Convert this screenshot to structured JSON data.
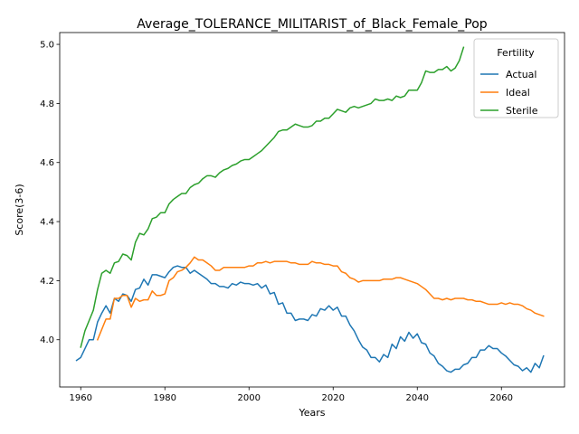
{
  "chart_data": {
    "type": "line",
    "title": "Average_TOLERANCE_MILITARIST_of_Black_Female_Pop",
    "xlabel": "Years",
    "ylabel": "Score(3-6)",
    "xlim": [
      1955,
      2075
    ],
    "ylim": [
      3.84,
      5.04
    ],
    "xticks": [
      1960,
      1980,
      2000,
      2020,
      2040,
      2060
    ],
    "yticks": [
      4.0,
      4.2,
      4.4,
      4.6,
      4.8,
      5.0
    ],
    "grid": false,
    "legend": {
      "title": "Fertility",
      "placement": "top-right"
    },
    "series": [
      {
        "name": "Actual",
        "color": "#1f77b4",
        "points": [
          [
            1959,
            3.93
          ],
          [
            1960,
            3.94
          ],
          [
            1961,
            3.97
          ],
          [
            1962,
            4.0
          ],
          [
            1963,
            4.0
          ],
          [
            1964,
            4.06
          ],
          [
            1965,
            4.09
          ],
          [
            1966,
            4.115
          ],
          [
            1967,
            4.09
          ],
          [
            1968,
            4.14
          ],
          [
            1969,
            4.13
          ],
          [
            1970,
            4.155
          ],
          [
            1971,
            4.15
          ],
          [
            1972,
            4.13
          ],
          [
            1973,
            4.17
          ],
          [
            1974,
            4.175
          ],
          [
            1975,
            4.205
          ],
          [
            1976,
            4.185
          ],
          [
            1977,
            4.22
          ],
          [
            1978,
            4.22
          ],
          [
            1979,
            4.215
          ],
          [
            1980,
            4.21
          ],
          [
            1981,
            4.23
          ],
          [
            1982,
            4.245
          ],
          [
            1983,
            4.25
          ],
          [
            1984,
            4.245
          ],
          [
            1985,
            4.245
          ],
          [
            1986,
            4.225
          ],
          [
            1987,
            4.235
          ],
          [
            1988,
            4.225
          ],
          [
            1989,
            4.215
          ],
          [
            1990,
            4.205
          ],
          [
            1991,
            4.19
          ],
          [
            1992,
            4.19
          ],
          [
            1993,
            4.18
          ],
          [
            1994,
            4.18
          ],
          [
            1995,
            4.175
          ],
          [
            1996,
            4.19
          ],
          [
            1997,
            4.185
          ],
          [
            1998,
            4.195
          ],
          [
            1999,
            4.19
          ],
          [
            2000,
            4.19
          ],
          [
            2001,
            4.185
          ],
          [
            2002,
            4.19
          ],
          [
            2003,
            4.175
          ],
          [
            2004,
            4.185
          ],
          [
            2005,
            4.155
          ],
          [
            2006,
            4.16
          ],
          [
            2007,
            4.12
          ],
          [
            2008,
            4.125
          ],
          [
            2009,
            4.09
          ],
          [
            2010,
            4.09
          ],
          [
            2011,
            4.065
          ],
          [
            2012,
            4.07
          ],
          [
            2013,
            4.07
          ],
          [
            2014,
            4.065
          ],
          [
            2015,
            4.085
          ],
          [
            2016,
            4.08
          ],
          [
            2017,
            4.105
          ],
          [
            2018,
            4.1
          ],
          [
            2019,
            4.115
          ],
          [
            2020,
            4.1
          ],
          [
            2021,
            4.11
          ],
          [
            2022,
            4.08
          ],
          [
            2023,
            4.08
          ],
          [
            2024,
            4.05
          ],
          [
            2025,
            4.03
          ],
          [
            2026,
            4.0
          ],
          [
            2027,
            3.975
          ],
          [
            2028,
            3.965
          ],
          [
            2029,
            3.94
          ],
          [
            2030,
            3.94
          ],
          [
            2031,
            3.925
          ],
          [
            2032,
            3.95
          ],
          [
            2033,
            3.94
          ],
          [
            2034,
            3.985
          ],
          [
            2035,
            3.97
          ],
          [
            2036,
            4.01
          ],
          [
            2037,
            3.995
          ],
          [
            2038,
            4.025
          ],
          [
            2039,
            4.005
          ],
          [
            2040,
            4.02
          ],
          [
            2041,
            3.99
          ],
          [
            2042,
            3.985
          ],
          [
            2043,
            3.955
          ],
          [
            2044,
            3.945
          ],
          [
            2045,
            3.92
          ],
          [
            2046,
            3.91
          ],
          [
            2047,
            3.895
          ],
          [
            2048,
            3.89
          ],
          [
            2049,
            3.9
          ],
          [
            2050,
            3.9
          ],
          [
            2051,
            3.915
          ],
          [
            2052,
            3.92
          ],
          [
            2053,
            3.94
          ],
          [
            2054,
            3.94
          ],
          [
            2055,
            3.965
          ],
          [
            2056,
            3.965
          ],
          [
            2057,
            3.98
          ],
          [
            2058,
            3.97
          ],
          [
            2059,
            3.97
          ],
          [
            2060,
            3.955
          ],
          [
            2061,
            3.945
          ],
          [
            2062,
            3.93
          ],
          [
            2063,
            3.915
          ],
          [
            2064,
            3.91
          ],
          [
            2065,
            3.895
          ],
          [
            2066,
            3.905
          ],
          [
            2067,
            3.89
          ],
          [
            2068,
            3.92
          ],
          [
            2069,
            3.905
          ],
          [
            2070,
            3.945
          ]
        ]
      },
      {
        "name": "Ideal",
        "color": "#ff7f0e",
        "points": [
          [
            1964,
            4.0
          ],
          [
            1965,
            4.035
          ],
          [
            1966,
            4.07
          ],
          [
            1967,
            4.07
          ],
          [
            1968,
            4.14
          ],
          [
            1969,
            4.14
          ],
          [
            1970,
            4.15
          ],
          [
            1971,
            4.15
          ],
          [
            1972,
            4.11
          ],
          [
            1973,
            4.14
          ],
          [
            1974,
            4.13
          ],
          [
            1975,
            4.135
          ],
          [
            1976,
            4.135
          ],
          [
            1977,
            4.165
          ],
          [
            1978,
            4.15
          ],
          [
            1979,
            4.15
          ],
          [
            1980,
            4.155
          ],
          [
            1981,
            4.2
          ],
          [
            1982,
            4.21
          ],
          [
            1983,
            4.23
          ],
          [
            1984,
            4.235
          ],
          [
            1985,
            4.245
          ],
          [
            1986,
            4.26
          ],
          [
            1987,
            4.28
          ],
          [
            1988,
            4.27
          ],
          [
            1989,
            4.27
          ],
          [
            1990,
            4.26
          ],
          [
            1991,
            4.25
          ],
          [
            1992,
            4.235
          ],
          [
            1993,
            4.235
          ],
          [
            1994,
            4.245
          ],
          [
            1995,
            4.245
          ],
          [
            1996,
            4.245
          ],
          [
            1997,
            4.245
          ],
          [
            1998,
            4.245
          ],
          [
            1999,
            4.245
          ],
          [
            2000,
            4.25
          ],
          [
            2001,
            4.25
          ],
          [
            2002,
            4.26
          ],
          [
            2003,
            4.26
          ],
          [
            2004,
            4.265
          ],
          [
            2005,
            4.26
          ],
          [
            2006,
            4.265
          ],
          [
            2007,
            4.265
          ],
          [
            2008,
            4.265
          ],
          [
            2009,
            4.265
          ],
          [
            2010,
            4.26
          ],
          [
            2011,
            4.26
          ],
          [
            2012,
            4.255
          ],
          [
            2013,
            4.255
          ],
          [
            2014,
            4.255
          ],
          [
            2015,
            4.265
          ],
          [
            2016,
            4.26
          ],
          [
            2017,
            4.26
          ],
          [
            2018,
            4.255
          ],
          [
            2019,
            4.255
          ],
          [
            2020,
            4.25
          ],
          [
            2021,
            4.25
          ],
          [
            2022,
            4.23
          ],
          [
            2023,
            4.225
          ],
          [
            2024,
            4.21
          ],
          [
            2025,
            4.205
          ],
          [
            2026,
            4.195
          ],
          [
            2027,
            4.2
          ],
          [
            2028,
            4.2
          ],
          [
            2029,
            4.2
          ],
          [
            2030,
            4.2
          ],
          [
            2031,
            4.2
          ],
          [
            2032,
            4.205
          ],
          [
            2033,
            4.205
          ],
          [
            2034,
            4.205
          ],
          [
            2035,
            4.21
          ],
          [
            2036,
            4.21
          ],
          [
            2037,
            4.205
          ],
          [
            2038,
            4.2
          ],
          [
            2039,
            4.195
          ],
          [
            2040,
            4.19
          ],
          [
            2041,
            4.18
          ],
          [
            2042,
            4.17
          ],
          [
            2043,
            4.155
          ],
          [
            2044,
            4.14
          ],
          [
            2045,
            4.14
          ],
          [
            2046,
            4.135
          ],
          [
            2047,
            4.14
          ],
          [
            2048,
            4.135
          ],
          [
            2049,
            4.14
          ],
          [
            2050,
            4.14
          ],
          [
            2051,
            4.14
          ],
          [
            2052,
            4.135
          ],
          [
            2053,
            4.135
          ],
          [
            2054,
            4.13
          ],
          [
            2055,
            4.13
          ],
          [
            2056,
            4.125
          ],
          [
            2057,
            4.12
          ],
          [
            2058,
            4.12
          ],
          [
            2059,
            4.12
          ],
          [
            2060,
            4.125
          ],
          [
            2061,
            4.12
          ],
          [
            2062,
            4.125
          ],
          [
            2063,
            4.12
          ],
          [
            2064,
            4.12
          ],
          [
            2065,
            4.115
          ],
          [
            2066,
            4.105
          ],
          [
            2067,
            4.1
          ],
          [
            2068,
            4.09
          ],
          [
            2069,
            4.085
          ],
          [
            2070,
            4.08
          ]
        ]
      },
      {
        "name": "Sterile",
        "color": "#2ca02c",
        "points": [
          [
            1960,
            3.975
          ],
          [
            1961,
            4.03
          ],
          [
            1962,
            4.065
          ],
          [
            1963,
            4.1
          ],
          [
            1964,
            4.17
          ],
          [
            1965,
            4.225
          ],
          [
            1966,
            4.235
          ],
          [
            1967,
            4.225
          ],
          [
            1968,
            4.26
          ],
          [
            1969,
            4.265
          ],
          [
            1970,
            4.29
          ],
          [
            1971,
            4.285
          ],
          [
            1972,
            4.27
          ],
          [
            1973,
            4.33
          ],
          [
            1974,
            4.36
          ],
          [
            1975,
            4.355
          ],
          [
            1976,
            4.375
          ],
          [
            1977,
            4.41
          ],
          [
            1978,
            4.415
          ],
          [
            1979,
            4.43
          ],
          [
            1980,
            4.43
          ],
          [
            1981,
            4.46
          ],
          [
            1982,
            4.475
          ],
          [
            1983,
            4.485
          ],
          [
            1984,
            4.495
          ],
          [
            1985,
            4.495
          ],
          [
            1986,
            4.515
          ],
          [
            1987,
            4.525
          ],
          [
            1988,
            4.53
          ],
          [
            1989,
            4.545
          ],
          [
            1990,
            4.555
          ],
          [
            1991,
            4.555
          ],
          [
            1992,
            4.55
          ],
          [
            1993,
            4.565
          ],
          [
            1994,
            4.575
          ],
          [
            1995,
            4.58
          ],
          [
            1996,
            4.59
          ],
          [
            1997,
            4.595
          ],
          [
            1998,
            4.605
          ],
          [
            1999,
            4.61
          ],
          [
            2000,
            4.61
          ],
          [
            2001,
            4.62
          ],
          [
            2002,
            4.63
          ],
          [
            2003,
            4.64
          ],
          [
            2004,
            4.655
          ],
          [
            2005,
            4.67
          ],
          [
            2006,
            4.685
          ],
          [
            2007,
            4.705
          ],
          [
            2008,
            4.71
          ],
          [
            2009,
            4.71
          ],
          [
            2010,
            4.72
          ],
          [
            2011,
            4.73
          ],
          [
            2012,
            4.725
          ],
          [
            2013,
            4.72
          ],
          [
            2014,
            4.72
          ],
          [
            2015,
            4.725
          ],
          [
            2016,
            4.74
          ],
          [
            2017,
            4.74
          ],
          [
            2018,
            4.75
          ],
          [
            2019,
            4.75
          ],
          [
            2020,
            4.765
          ],
          [
            2021,
            4.78
          ],
          [
            2022,
            4.775
          ],
          [
            2023,
            4.77
          ],
          [
            2024,
            4.785
          ],
          [
            2025,
            4.79
          ],
          [
            2026,
            4.785
          ],
          [
            2027,
            4.79
          ],
          [
            2028,
            4.795
          ],
          [
            2029,
            4.8
          ],
          [
            2030,
            4.815
          ],
          [
            2031,
            4.81
          ],
          [
            2032,
            4.81
          ],
          [
            2033,
            4.815
          ],
          [
            2034,
            4.81
          ],
          [
            2035,
            4.825
          ],
          [
            2036,
            4.82
          ],
          [
            2037,
            4.825
          ],
          [
            2038,
            4.845
          ],
          [
            2039,
            4.845
          ],
          [
            2040,
            4.845
          ],
          [
            2041,
            4.87
          ],
          [
            2042,
            4.91
          ],
          [
            2043,
            4.905
          ],
          [
            2044,
            4.905
          ],
          [
            2045,
            4.915
          ],
          [
            2046,
            4.915
          ],
          [
            2047,
            4.925
          ],
          [
            2048,
            4.91
          ],
          [
            2049,
            4.92
          ],
          [
            2050,
            4.945
          ],
          [
            2051,
            4.99
          ]
        ]
      }
    ]
  }
}
